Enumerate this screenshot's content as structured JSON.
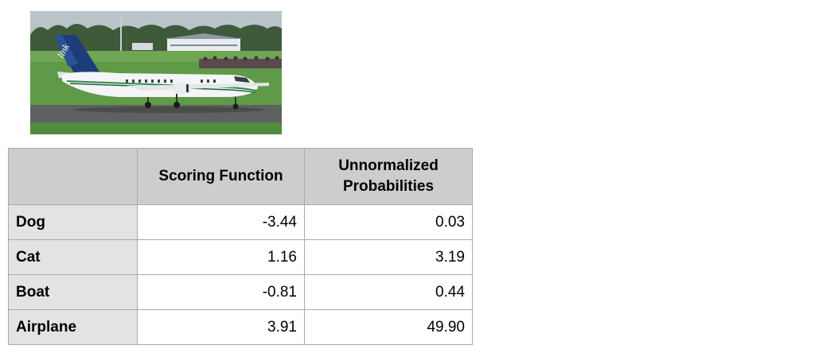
{
  "photo": {
    "icon": "airplane-photo",
    "tail_text": "link"
  },
  "table": {
    "headers": [
      "",
      "Scoring Function",
      "Unnormalized Probabilities"
    ],
    "header_lines": {
      "col1": [
        "Scoring Function"
      ],
      "col2": [
        "Unnormalized",
        "Probabilities"
      ]
    },
    "rows": [
      {
        "label": "Dog",
        "score": "-3.44",
        "prob": "0.03"
      },
      {
        "label": "Cat",
        "score": "1.16",
        "prob": "3.19"
      },
      {
        "label": "Boat",
        "score": "-0.81",
        "prob": "0.44"
      },
      {
        "label": "Airplane",
        "score": "3.91",
        "prob": "49.90"
      }
    ]
  },
  "colors": {
    "header_bg": "#cdcdcd",
    "label_bg": "#e3e3e3",
    "border": "#a9a9a9"
  }
}
